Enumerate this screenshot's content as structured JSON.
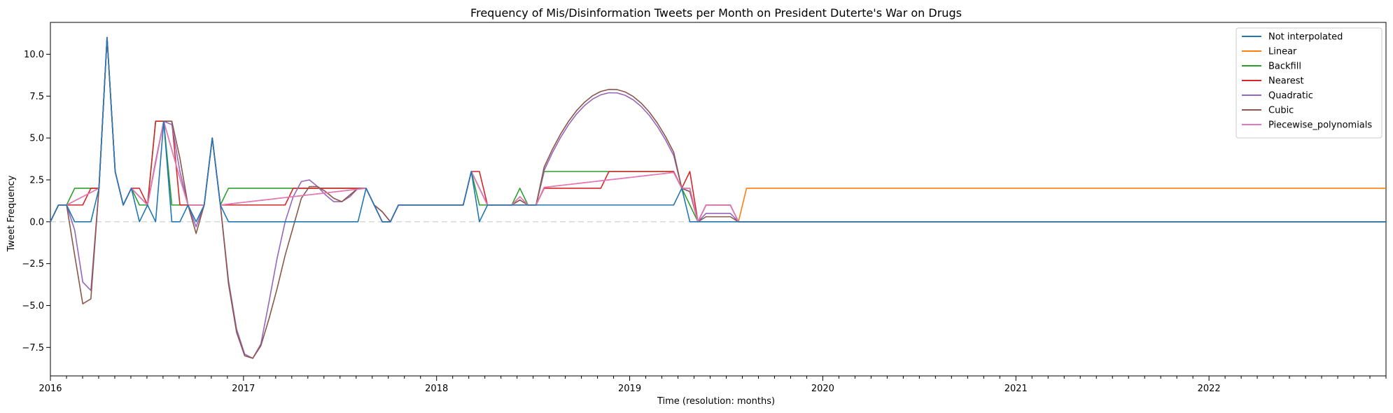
{
  "chart_data": {
    "type": "line",
    "title": "Frequency of Mis/Disinformation Tweets per Month on President Duterte's War on Drugs",
    "xlabel": "Time (resolution: months)",
    "ylabel": "Tweet Frequency",
    "xlim": [
      "2016-01",
      "2022-12"
    ],
    "ylim": [
      -9.2,
      11.9
    ],
    "x_ticks": [
      "2016",
      "2017",
      "2018",
      "2019",
      "2020",
      "2021",
      "2022"
    ],
    "y_ticks": [
      "−7.5",
      "−5.0",
      "−2.5",
      "0.0",
      "2.5",
      "5.0",
      "7.5",
      "10.0"
    ],
    "y_tick_values": [
      -7.5,
      -5.0,
      -2.5,
      0.0,
      2.5,
      5.0,
      7.5,
      10.0
    ],
    "grid": false,
    "zero_reference_line": true,
    "legend_position": "top-right",
    "series": [
      {
        "name": "Not interpolated",
        "color": "#1f77b4",
        "values": [
          0,
          1,
          1,
          0,
          0,
          0,
          2,
          11,
          3,
          1,
          2,
          0,
          1,
          0,
          6,
          0,
          0,
          1,
          0,
          1,
          5,
          1,
          0,
          0,
          0,
          0,
          0,
          0,
          0,
          0,
          0,
          0,
          0,
          0,
          0,
          0,
          0,
          0,
          0,
          2,
          1,
          0,
          0,
          1,
          1,
          1,
          1,
          1,
          1,
          1,
          1,
          1,
          3,
          0,
          1,
          1,
          1,
          1,
          1,
          1,
          1,
          1,
          1,
          1,
          1,
          1,
          1,
          1,
          1,
          1,
          1,
          1,
          1,
          1,
          1,
          1,
          1,
          1,
          2,
          0,
          0,
          0,
          0,
          0,
          0,
          0,
          0,
          0,
          0,
          0,
          0,
          0,
          0,
          0,
          0,
          0,
          0,
          0,
          0,
          0,
          0,
          0,
          0,
          0,
          0,
          0,
          0,
          0,
          0,
          0,
          0,
          0,
          0,
          0,
          0,
          0,
          0,
          0,
          0,
          0,
          0,
          0,
          0,
          0,
          0,
          0,
          0,
          0,
          0,
          0,
          0,
          0,
          0,
          0,
          0,
          0,
          0,
          0,
          0,
          0,
          0,
          0,
          0,
          0,
          0,
          0,
          0,
          0,
          0,
          0,
          0,
          0,
          0,
          0,
          0,
          0
        ]
      },
      {
        "name": "Linear",
        "color": "#ff7f0e",
        "values": []
      },
      {
        "name": "Backfill",
        "color": "#2ca02c",
        "values": []
      },
      {
        "name": "Nearest",
        "color": "#d62728",
        "values": []
      },
      {
        "name": "Quadratic",
        "color": "#9467bd",
        "values": []
      },
      {
        "name": "Cubic",
        "color": "#8c564b",
        "values": []
      },
      {
        "name": "Piecewise_polynomials",
        "color": "#e377c2",
        "values": []
      }
    ]
  }
}
